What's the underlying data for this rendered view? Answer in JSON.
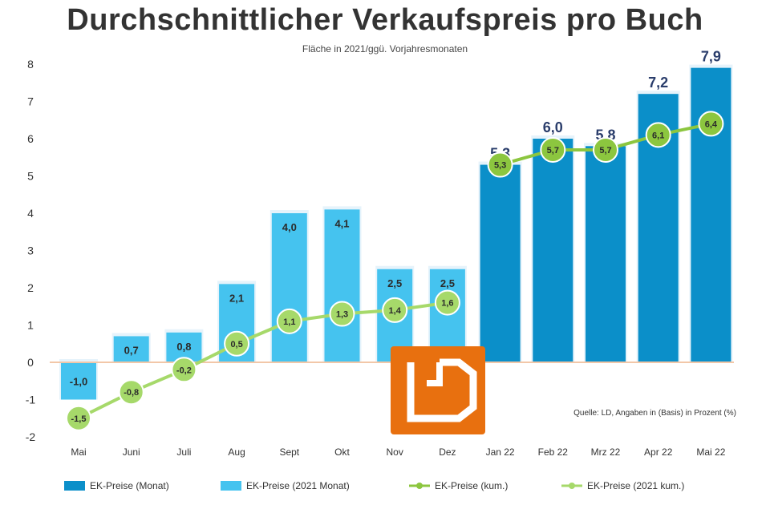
{
  "chart_data": {
    "type": "bar",
    "title": "Durchschnittlicher Verkaufspreis pro Buch",
    "subtitle": "Fläche in 2021/ggü. Vorjahresmonaten",
    "source": "Quelle: LD, Angaben in (Basis) in Prozent (%)",
    "categories": [
      "Mai",
      "Juni",
      "Juli",
      "Aug",
      "Sept",
      "Okt",
      "Nov",
      "Dez",
      "Jan 22",
      "Feb 22",
      "Mrz 22",
      "Apr 22",
      "Mai 22"
    ],
    "ylim": [
      -2,
      8
    ],
    "yticks": [
      -2,
      -1,
      0,
      1,
      2,
      3,
      4,
      5,
      6,
      7,
      8
    ],
    "grid": false,
    "legend_position": "bottom",
    "series": [
      {
        "name": "EK-Preise (Monat)",
        "type": "bar",
        "color": "#0b8fc9",
        "values": [
          null,
          null,
          null,
          null,
          null,
          null,
          null,
          null,
          5.3,
          6.0,
          5.8,
          7.2,
          7.9
        ],
        "labels": [
          "",
          "",
          "",
          "",
          "",
          "",
          "",
          "",
          "5,3",
          "6,0",
          "5,8",
          "7,2",
          "7,9"
        ]
      },
      {
        "name": "EK-Preise (2021 Monat)",
        "type": "bar",
        "color": "#45c3ef",
        "values": [
          -1.0,
          0.7,
          0.8,
          2.1,
          4.0,
          4.1,
          2.5,
          2.5,
          null,
          null,
          null,
          null,
          null
        ],
        "labels": [
          "-1,0",
          "0,7",
          "0,8",
          "2,1",
          "4,0",
          "4,1",
          "2,5",
          "2,5",
          "",
          "",
          "",
          "",
          ""
        ]
      },
      {
        "name": "EK-Preise (kum.)",
        "type": "line",
        "color": "#8cc63f",
        "values": [
          null,
          null,
          null,
          null,
          null,
          null,
          null,
          null,
          5.3,
          5.7,
          5.7,
          6.1,
          6.4
        ],
        "labels": [
          "",
          "",
          "",
          "",
          "",
          "",
          "",
          "",
          "5,3",
          "5,7",
          "5,7",
          "6,1",
          "6,4"
        ]
      },
      {
        "name": "EK-Preise (2021 kum.)",
        "type": "line",
        "color": "#a6d96a",
        "values": [
          -1.5,
          -0.8,
          -0.2,
          0.5,
          1.1,
          1.3,
          1.4,
          1.6,
          null,
          null,
          null,
          null,
          null
        ],
        "labels": [
          "-1,5",
          "-0,8",
          "-0,2",
          "0,5",
          "1,1",
          "1,3",
          "1,4",
          "1,6",
          "",
          "",
          "",
          "",
          ""
        ]
      }
    ]
  },
  "logo": {
    "text": "LD",
    "color": "#e8700f"
  }
}
